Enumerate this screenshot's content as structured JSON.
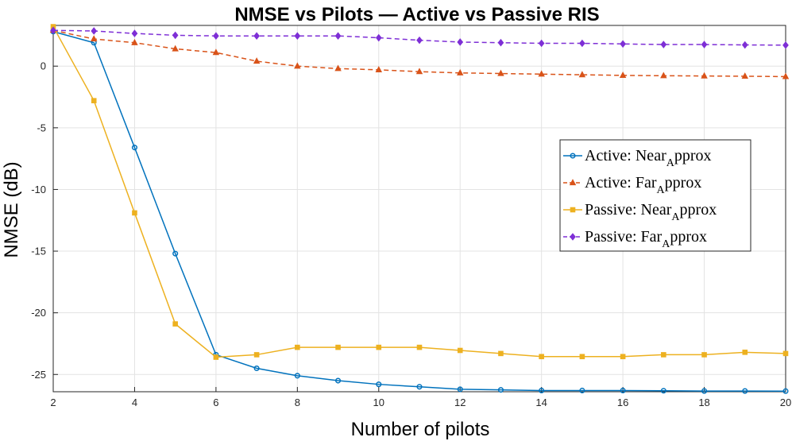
{
  "chart_data": {
    "type": "line",
    "title": "NMSE vs Pilots — Active vs Passive RIS",
    "xlabel": "Number of pilots",
    "ylabel": "NMSE (dB)",
    "xlim": [
      2,
      20
    ],
    "ylim": [
      -26.4,
      3.3
    ],
    "xticks": [
      2,
      4,
      6,
      8,
      10,
      12,
      14,
      16,
      18,
      20
    ],
    "xtick_labels": [
      "2",
      "4",
      "6",
      "8",
      "10",
      "12",
      "14",
      "16",
      "18",
      "20"
    ],
    "yticks": [
      0,
      -5,
      -10,
      -15,
      -20,
      -25
    ],
    "ytick_labels": [
      "0",
      "-5",
      "-10",
      "-15",
      "-20",
      "-25"
    ],
    "grid": true,
    "legend_position": "right",
    "x": [
      2,
      3,
      4,
      5,
      6,
      7,
      8,
      9,
      10,
      11,
      12,
      13,
      14,
      15,
      16,
      17,
      18,
      19,
      20
    ],
    "series": [
      {
        "name_main": "Active: Near",
        "name_sub": "A",
        "name_rest": "pprox",
        "color": "#0072BD",
        "dash": "solid",
        "marker": "circle",
        "values": [
          2.8,
          1.9,
          -6.6,
          -15.2,
          -23.4,
          -24.5,
          -25.1,
          -25.5,
          -25.8,
          -26.0,
          -26.2,
          -26.25,
          -26.3,
          -26.3,
          -26.3,
          -26.32,
          -26.34,
          -26.34,
          -26.35
        ]
      },
      {
        "name_main": "Active: Far",
        "name_sub": "A",
        "name_rest": "pprox",
        "color": "#D95319",
        "dash": "dashed",
        "marker": "triangle",
        "values": [
          2.9,
          2.2,
          1.9,
          1.4,
          1.1,
          0.4,
          0.0,
          -0.2,
          -0.3,
          -0.45,
          -0.55,
          -0.6,
          -0.65,
          -0.7,
          -0.75,
          -0.78,
          -0.8,
          -0.82,
          -0.85
        ]
      },
      {
        "name_main": "Passive: Near",
        "name_sub": "A",
        "name_rest": "pprox",
        "color": "#EDB120",
        "dash": "solid",
        "marker": "square",
        "values": [
          3.2,
          -2.8,
          -11.9,
          -20.9,
          -23.6,
          -23.4,
          -22.8,
          -22.8,
          -22.8,
          -22.8,
          -23.05,
          -23.3,
          -23.55,
          -23.55,
          -23.55,
          -23.4,
          -23.4,
          -23.2,
          -23.3
        ]
      },
      {
        "name_main": "Passive: Far",
        "name_sub": "A",
        "name_rest": "pprox",
        "color": "#7E2FD6",
        "dash": "dashed",
        "marker": "diamond",
        "values": [
          2.9,
          2.85,
          2.65,
          2.5,
          2.45,
          2.45,
          2.45,
          2.45,
          2.3,
          2.1,
          1.95,
          1.9,
          1.85,
          1.85,
          1.8,
          1.75,
          1.75,
          1.72,
          1.7
        ]
      }
    ]
  }
}
